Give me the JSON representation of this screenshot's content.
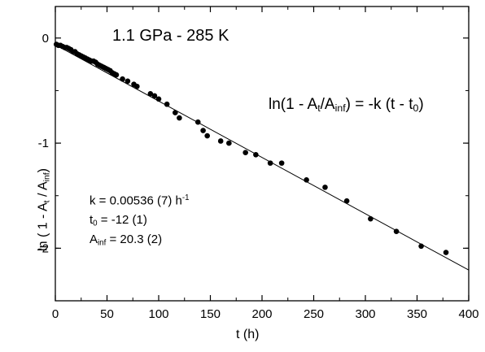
{
  "chart_data": {
    "type": "scatter",
    "title": "1.1 GPa  -  285 K",
    "xlabel": "t (h)",
    "ylabel": {
      "prefix": "ln ( 1 - A",
      "sub1": "t",
      "mid": " / A",
      "sub2": "inf",
      "suffix": ")"
    },
    "xlim": [
      0,
      400
    ],
    "ylim": [
      -2.5,
      0.3
    ],
    "x_ticks": [
      0,
      50,
      100,
      150,
      200,
      250,
      300,
      350,
      400
    ],
    "x_tick_labels": [
      "0",
      "50",
      "100",
      "150",
      "200",
      "250",
      "300",
      "350",
      "400"
    ],
    "y_ticks": [
      0,
      -1,
      -2
    ],
    "y_tick_labels": [
      "0",
      "-1",
      "-2"
    ],
    "grid": false,
    "fit_line": {
      "x": [
        0,
        400
      ],
      "y": [
        -0.064,
        -2.208
      ]
    },
    "equation": {
      "p1": "ln(1 - A",
      "s1": "t",
      "p2": "/A",
      "s2": "inf",
      "p3": ") = -k (t - t",
      "s3": "0",
      "p4": ")"
    },
    "params": {
      "k": {
        "p1": "k = 0.00536 (7) h",
        "sup": "-1"
      },
      "t0": {
        "p1": "t",
        "sub": "0",
        "p2": " = -12 (1)"
      },
      "ainf": {
        "p1": "A",
        "sub": "inf",
        "p2": " = 20.3 (2)"
      }
    },
    "points": {
      "x": [
        1,
        3,
        5,
        7,
        9,
        11,
        13,
        15,
        17,
        19,
        21,
        23,
        25,
        27,
        29,
        31,
        33,
        35,
        37,
        39,
        41,
        43,
        45,
        47,
        49,
        51,
        53,
        55,
        57,
        59,
        65,
        70,
        76,
        79,
        92,
        96,
        100,
        108,
        116,
        120,
        138,
        143,
        147,
        160,
        168,
        184,
        194,
        208,
        219,
        243,
        261,
        282,
        305,
        330,
        354,
        378
      ],
      "y": [
        -0.06,
        -0.07,
        -0.07,
        -0.08,
        -0.09,
        -0.09,
        -0.1,
        -0.11,
        -0.13,
        -0.13,
        -0.15,
        -0.16,
        -0.17,
        -0.18,
        -0.19,
        -0.2,
        -0.21,
        -0.22,
        -0.22,
        -0.23,
        -0.25,
        -0.26,
        -0.27,
        -0.28,
        -0.29,
        -0.3,
        -0.31,
        -0.33,
        -0.34,
        -0.35,
        -0.39,
        -0.41,
        -0.44,
        -0.46,
        -0.53,
        -0.55,
        -0.58,
        -0.63,
        -0.71,
        -0.76,
        -0.8,
        -0.88,
        -0.93,
        -0.98,
        -1.0,
        -1.09,
        -1.11,
        -1.19,
        -1.19,
        -1.35,
        -1.42,
        -1.55,
        -1.72,
        -1.84,
        -1.98,
        -2.04
      ]
    }
  }
}
